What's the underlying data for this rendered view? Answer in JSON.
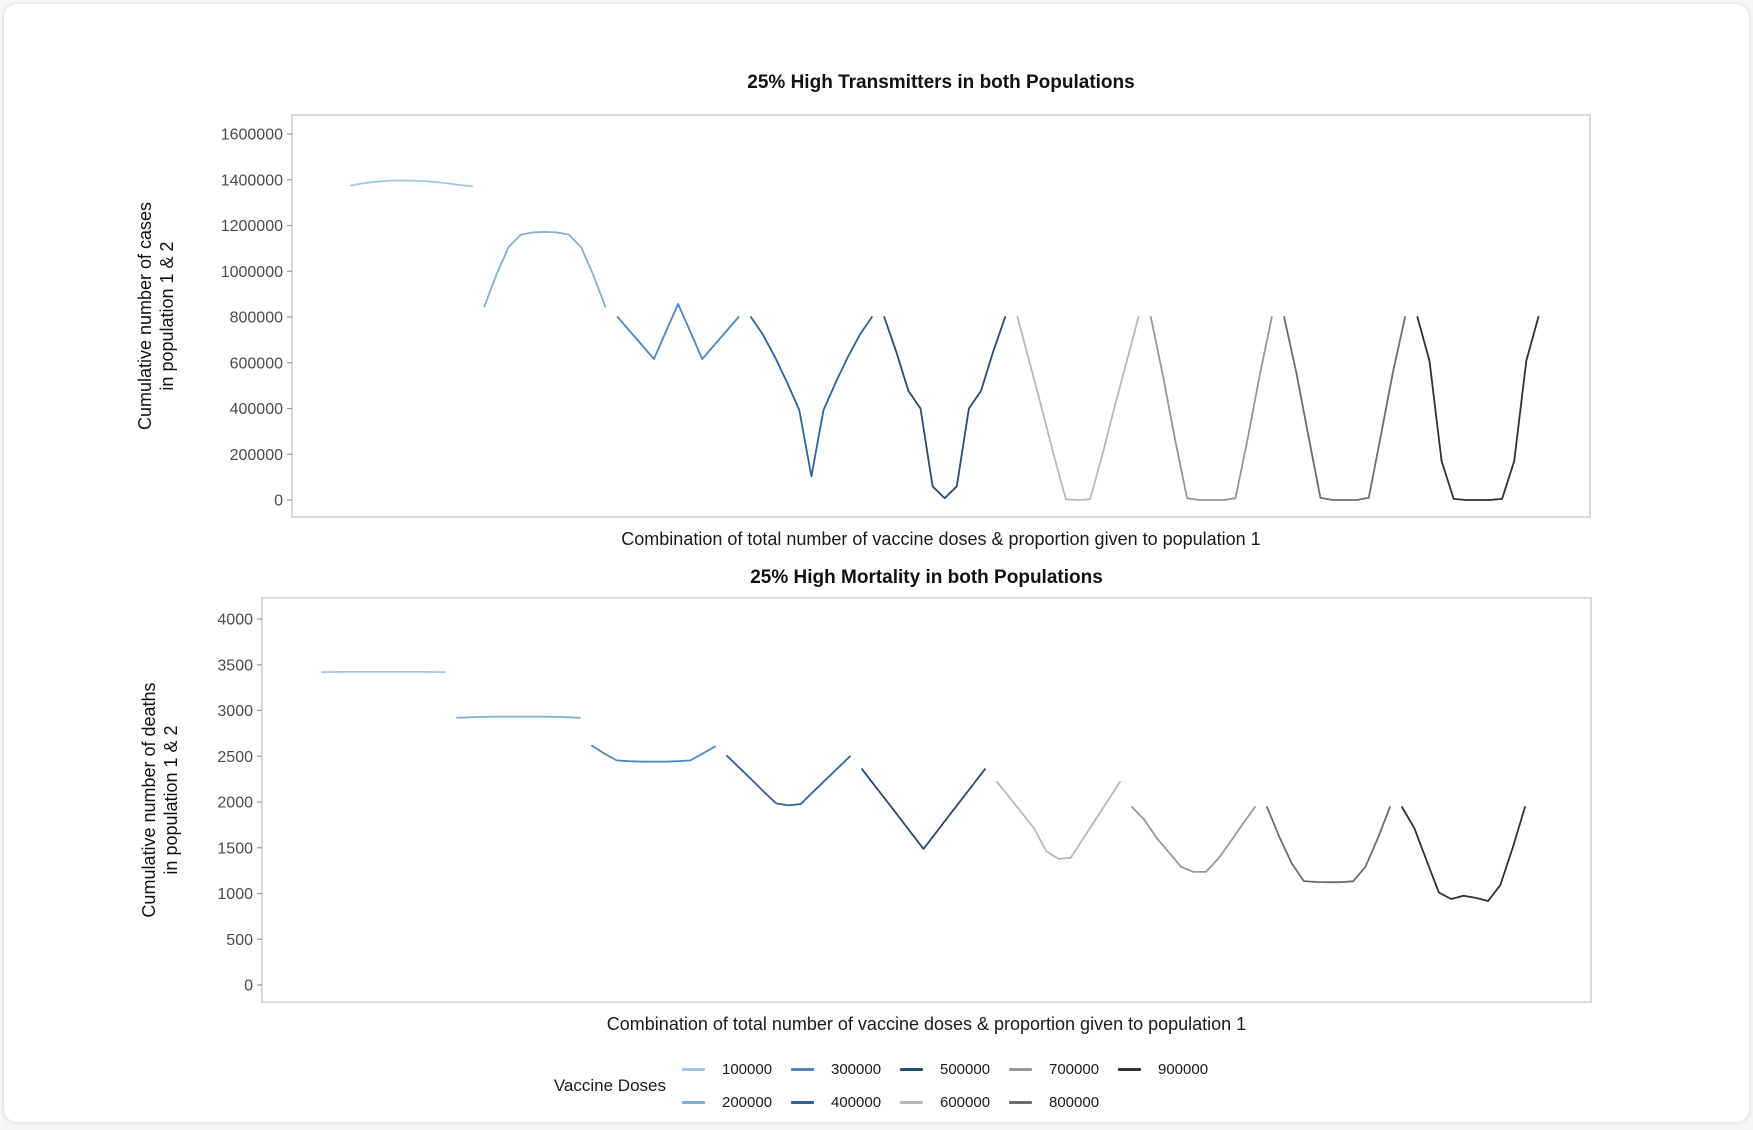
{
  "figure": {
    "background_color": "#ffffff",
    "border_color": "#c9c9c9",
    "tick_label_color": "#4a4a4a"
  },
  "legend": {
    "title": "Vaccine Doses",
    "items": [
      {
        "label": "100000",
        "color": "#a4c7e1"
      },
      {
        "label": "200000",
        "color": "#7fb0d3"
      },
      {
        "label": "300000",
        "color": "#4e87ba"
      },
      {
        "label": "400000",
        "color": "#2e6197"
      },
      {
        "label": "500000",
        "color": "#2a4a70"
      },
      {
        "label": "600000",
        "color": "#b8b8b8"
      },
      {
        "label": "700000",
        "color": "#979797"
      },
      {
        "label": "800000",
        "color": "#6d6d6d"
      },
      {
        "label": "900000",
        "color": "#303030"
      }
    ]
  },
  "chart_data": [
    {
      "type": "line",
      "title": "25% High Transmitters in both Populations",
      "xlabel": "Combination of total number of vaccine doses & proportion given to population 1",
      "ylabel_line1": "Cumulative number of cases",
      "ylabel_line2": "in population 1 & 2",
      "ylim": [
        0,
        1600000
      ],
      "yticks": [
        0,
        200000,
        400000,
        600000,
        800000,
        1000000,
        1200000,
        1400000,
        1600000
      ],
      "grid": false,
      "legend_position": "bottom-shared",
      "x_note": "99 combinations: 9 vaccine-dose totals, each with 11 allocation proportions (0 to 1) to population 1; series drawn as separate segments left to right",
      "series": [
        {
          "name": "100000",
          "color": "#a4c7e1",
          "values": [
            1375000,
            1384000,
            1391000,
            1395000,
            1397000,
            1396000,
            1394000,
            1390000,
            1384000,
            1377000,
            1371000
          ]
        },
        {
          "name": "200000",
          "color": "#7fb0d3",
          "values": [
            845000,
            985000,
            1105000,
            1160000,
            1170000,
            1172000,
            1170000,
            1160000,
            1105000,
            985000,
            845000
          ]
        },
        {
          "name": "300000",
          "color": "#4e87ba",
          "values": [
            800000,
            739000,
            678000,
            616000,
            737000,
            857000,
            737000,
            616000,
            678000,
            739000,
            800000
          ]
        },
        {
          "name": "400000",
          "color": "#2e6197",
          "values": [
            800000,
            722000,
            624000,
            513000,
            393000,
            103000,
            393000,
            513000,
            624000,
            722000,
            800000
          ]
        },
        {
          "name": "500000",
          "color": "#2a4a70",
          "values": [
            800000,
            648000,
            477000,
            400000,
            60000,
            8000,
            60000,
            400000,
            477000,
            648000,
            800000
          ]
        },
        {
          "name": "600000",
          "color": "#b8b8b8",
          "values": [
            800000,
            601000,
            402000,
            196000,
            3000,
            0,
            3000,
            196000,
            402000,
            601000,
            800000
          ]
        },
        {
          "name": "700000",
          "color": "#979797",
          "values": [
            800000,
            545000,
            266000,
            8000,
            0,
            0,
            0,
            8000,
            266000,
            545000,
            800000
          ]
        },
        {
          "name": "800000",
          "color": "#6d6d6d",
          "values": [
            800000,
            560000,
            283000,
            10000,
            0,
            0,
            0,
            10000,
            283000,
            560000,
            800000
          ]
        },
        {
          "name": "900000",
          "color": "#303030",
          "values": [
            800000,
            608000,
            170000,
            5000,
            0,
            0,
            0,
            5000,
            170000,
            608000,
            800000
          ]
        }
      ]
    },
    {
      "type": "line",
      "title": "25% High Mortality in both Populations",
      "xlabel": "Combination of total number of vaccine doses & proportion given to population 1",
      "ylabel_line1": "Cumulative number of deaths",
      "ylabel_line2": "in population 1 & 2",
      "ylim": [
        0,
        4000
      ],
      "yticks": [
        0,
        500,
        1000,
        1500,
        2000,
        2500,
        3000,
        3500,
        4000
      ],
      "grid": false,
      "legend_position": "bottom-shared",
      "x_note": "99 combinations: 9 vaccine-dose totals, each with 11 allocation proportions (0 to 1) to population 1; series drawn as separate segments left to right",
      "series": [
        {
          "name": "100000",
          "color": "#a4c7e1",
          "values": [
            3420,
            3421,
            3422,
            3422,
            3422,
            3422,
            3422,
            3422,
            3422,
            3421,
            3420
          ]
        },
        {
          "name": "200000",
          "color": "#7fb0d3",
          "values": [
            2920,
            2926,
            2930,
            2932,
            2933,
            2933,
            2933,
            2932,
            2930,
            2926,
            2920
          ]
        },
        {
          "name": "300000",
          "color": "#4e87ba",
          "values": [
            2615,
            2530,
            2455,
            2446,
            2442,
            2440,
            2442,
            2446,
            2455,
            2530,
            2605
          ]
        },
        {
          "name": "400000",
          "color": "#2e6197",
          "values": [
            2505,
            2375,
            2245,
            2112,
            1985,
            1963,
            1978,
            2110,
            2240,
            2370,
            2498
          ]
        },
        {
          "name": "500000",
          "color": "#2a4a70",
          "values": [
            2360,
            2185,
            2012,
            1838,
            1662,
            1487,
            1662,
            1838,
            2012,
            2185,
            2360
          ]
        },
        {
          "name": "600000",
          "color": "#b8b8b8",
          "values": [
            2220,
            2052,
            1884,
            1716,
            1462,
            1378,
            1390,
            1598,
            1806,
            2013,
            2220
          ]
        },
        {
          "name": "700000",
          "color": "#979797",
          "values": [
            1945,
            1806,
            1608,
            1450,
            1291,
            1236,
            1236,
            1378,
            1564,
            1761,
            1945
          ]
        },
        {
          "name": "800000",
          "color": "#6d6d6d",
          "values": [
            1945,
            1620,
            1330,
            1135,
            1126,
            1124,
            1124,
            1133,
            1291,
            1600,
            1945
          ]
        },
        {
          "name": "900000",
          "color": "#303030",
          "values": [
            1945,
            1715,
            1360,
            1010,
            940,
            975,
            952,
            918,
            1094,
            1500,
            1945
          ]
        }
      ]
    }
  ]
}
